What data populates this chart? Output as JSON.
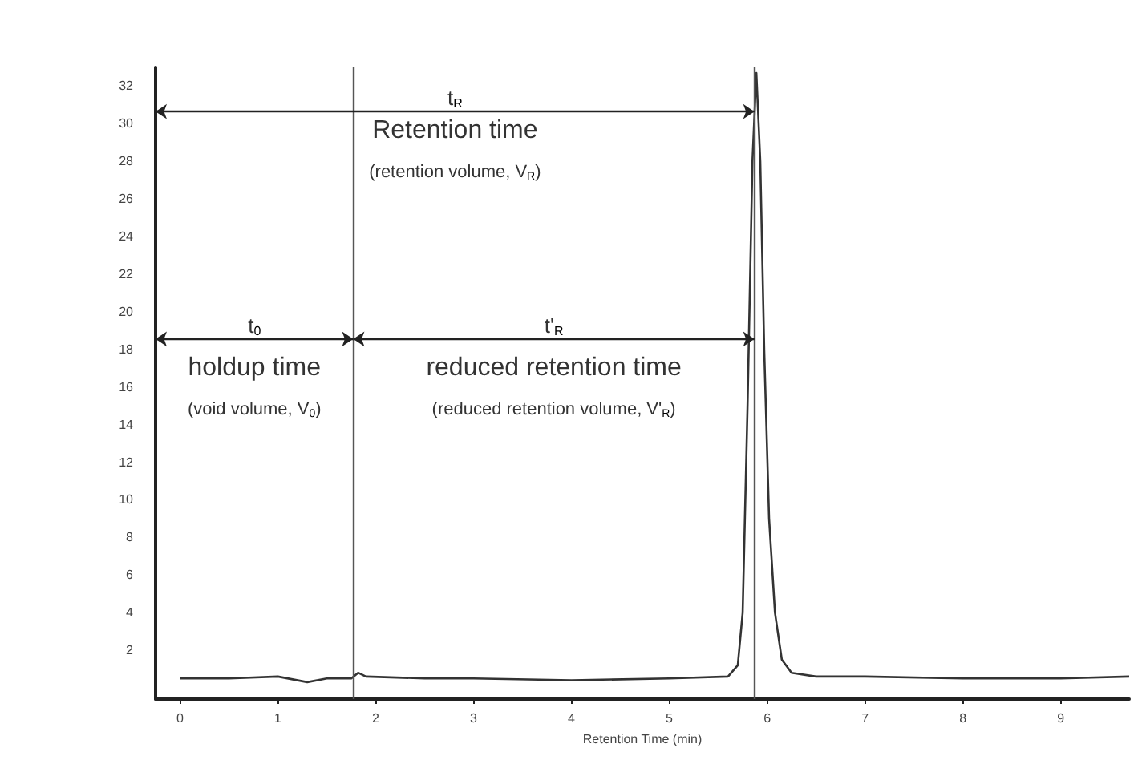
{
  "chart_data": {
    "type": "line",
    "xlabel": "Retention Time (min)",
    "x": [
      0,
      0.5,
      1,
      1.3,
      1.5,
      1.75,
      1.82,
      1.9,
      2.5,
      3,
      4,
      5,
      5.6,
      5.7,
      5.75,
      5.8,
      5.85,
      5.89,
      5.93,
      5.97,
      6.02,
      6.08,
      6.15,
      6.25,
      6.5,
      7,
      8,
      9,
      9.7
    ],
    "series": [
      {
        "color": "#333333",
        "values": [
          0.5,
          0.5,
          0.6,
          0.3,
          0.5,
          0.5,
          0.8,
          0.6,
          0.5,
          0.5,
          0.4,
          0.5,
          0.6,
          1.2,
          4,
          15,
          28,
          32.7,
          28,
          18,
          9,
          4,
          1.5,
          0.8,
          0.6,
          0.6,
          0.5,
          0.5,
          0.6
        ]
      }
    ],
    "xlim": [
      -0.25,
      9.7
    ],
    "xticks": [
      0,
      1,
      2,
      3,
      4,
      5,
      6,
      7,
      8,
      9
    ],
    "ylim": [
      -0.6,
      33
    ],
    "yticks": [
      2,
      4,
      6,
      8,
      10,
      12,
      14,
      16,
      18,
      20,
      22,
      24,
      26,
      28,
      30,
      32
    ],
    "marker": "none",
    "line_style": "solid",
    "ref_lines": [
      {
        "axis": "x",
        "value": 1.77,
        "color": "#555555"
      },
      {
        "axis": "x",
        "value": 5.87,
        "color": "#555555"
      }
    ],
    "annotations": [
      "t$_{R}$",
      "Retention time",
      "(retention volume, V$_{R}$)",
      "t$_{0}$",
      "holdup time",
      "(void volume, V$_{0}$)",
      "t'$_{R}$",
      "reduced retention time",
      "(reduced retention volume, V'$_{R}$)"
    ]
  }
}
